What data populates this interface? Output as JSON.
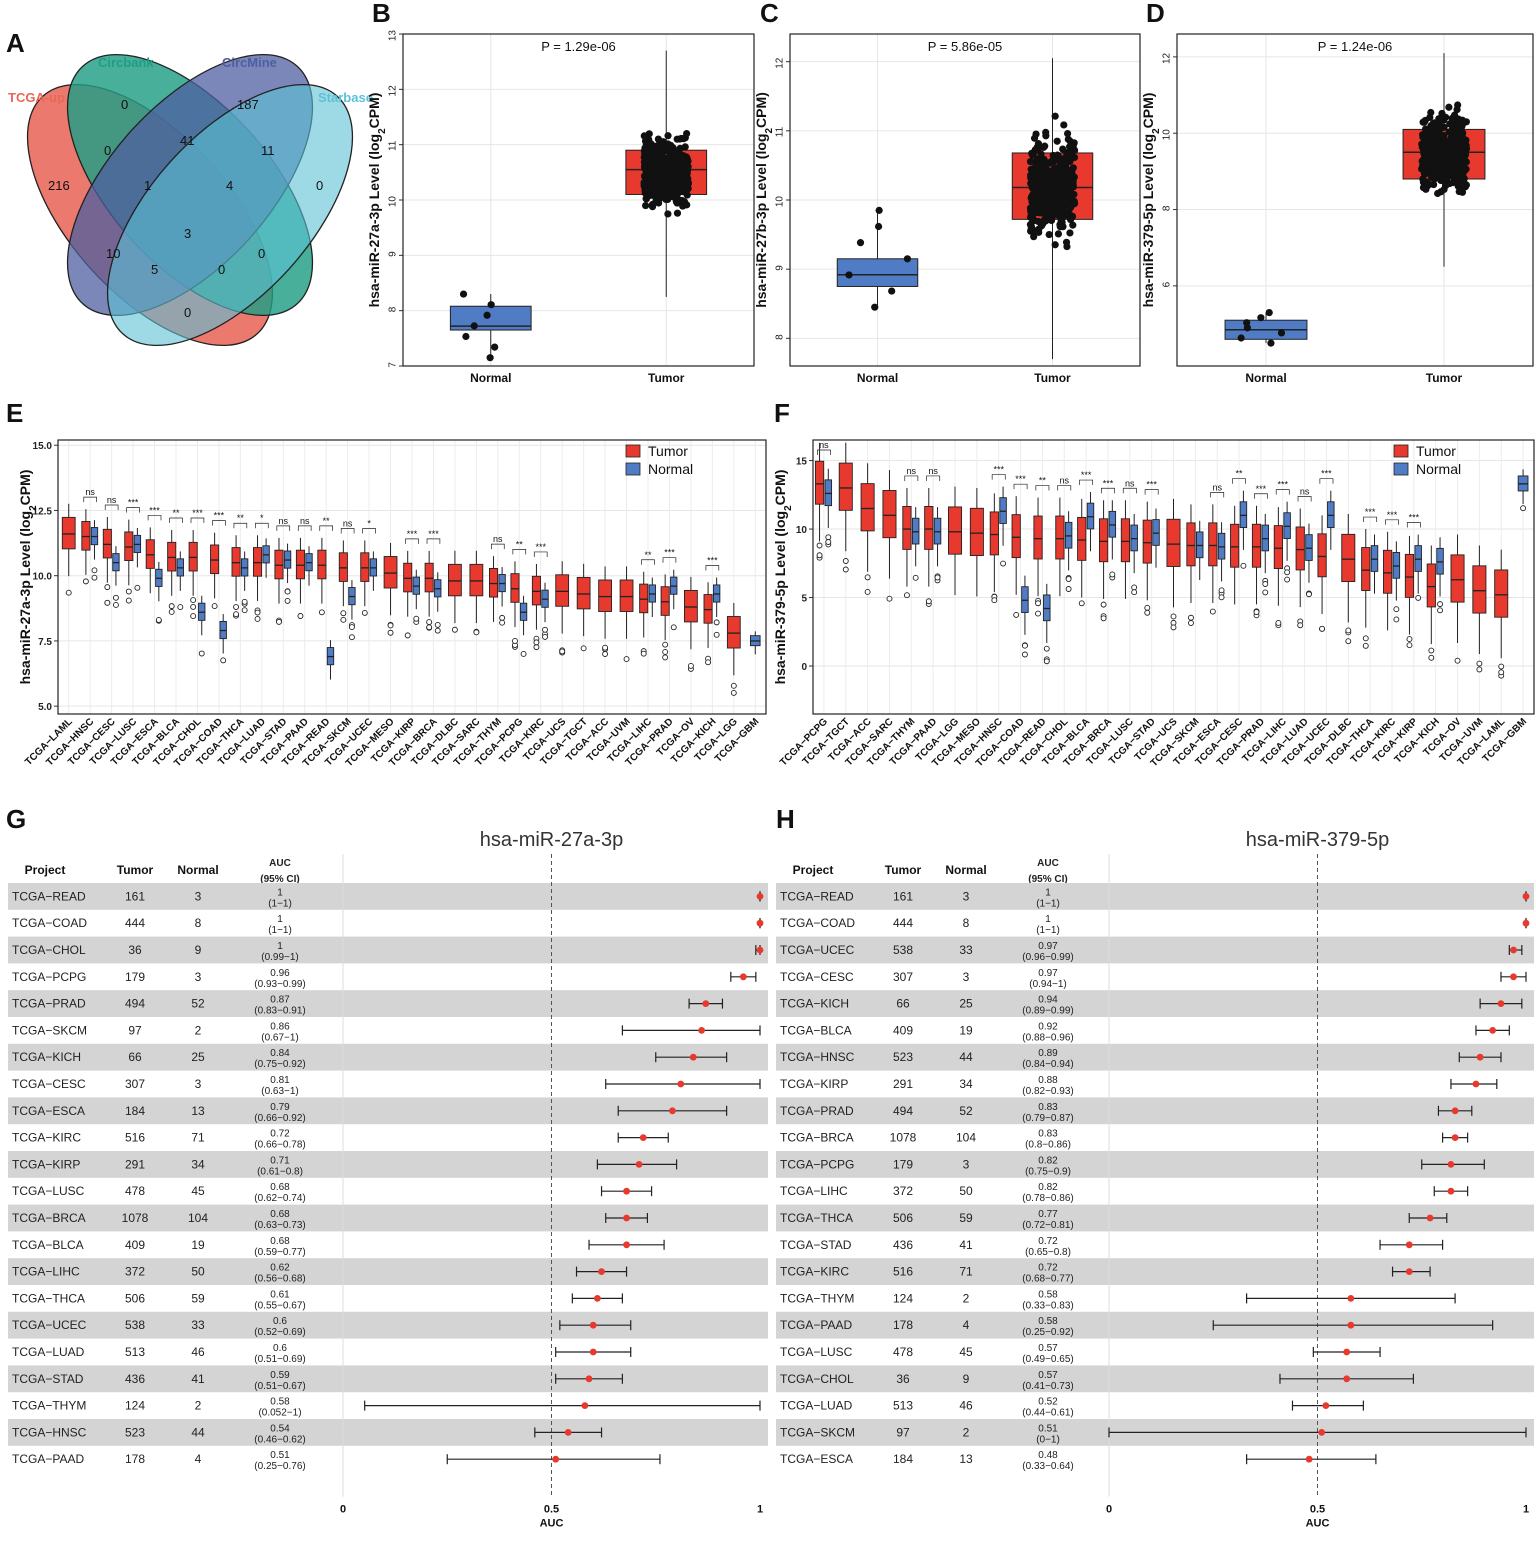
{
  "panels": {
    "A": "A",
    "B": "B",
    "C": "C",
    "D": "D",
    "E": "E",
    "F": "F",
    "G": "G",
    "H": "H"
  },
  "colors": {
    "tumor": "#e8392f",
    "normal": "#4f7cc5",
    "tcga": "#e8675a",
    "circbank": "#1f9e84",
    "circmine": "#4d5fa0",
    "starbase": "#5bc2d6",
    "grey": "#d4d4d4"
  },
  "venn": {
    "sets": [
      "TCGA-up",
      "Circbank",
      "CircMine",
      "Starbase"
    ],
    "counts": {
      "tcga_only": "216",
      "circbank_only": "0",
      "circmine_only": "187",
      "starbase_only": "0",
      "tc_cb": "0",
      "cb_cm": "41",
      "cm_sb": "11",
      "tc_cm": "10",
      "cb_sb": "0",
      "tc_sb": "0",
      "tc_cb_cm": "1",
      "cb_cm_sb": "4",
      "tc_cm_sb": "5",
      "tc_cb_sb": "0",
      "all": "3"
    }
  },
  "chart_data": [
    {
      "id": "B",
      "type": "box",
      "ylabel": "hsa-miR-27a-3p Level (log2CPM)",
      "pvalue": "P = 1.29e-06",
      "categories": [
        "Normal",
        "Tumor"
      ],
      "ylim": [
        7,
        13
      ],
      "yticks": [
        7,
        8,
        9,
        10,
        11,
        12,
        13
      ],
      "boxes": [
        {
          "group": "Normal",
          "q1": 7.65,
          "median": 7.72,
          "q3": 8.08,
          "min": 7.15,
          "max": 8.3
        },
        {
          "group": "Tumor",
          "q1": 10.1,
          "median": 10.55,
          "q3": 10.9,
          "min": 8.25,
          "max": 12.7
        }
      ]
    },
    {
      "id": "C",
      "type": "box",
      "ylabel": "hsa-miR-27b-3p Level (log2CPM)",
      "pvalue": "P = 5.86e-05",
      "categories": [
        "Normal",
        "Tumor"
      ],
      "ylim": [
        7.6,
        12.4
      ],
      "yticks": [
        8,
        9,
        10,
        11,
        12
      ],
      "boxes": [
        {
          "group": "Normal",
          "q1": 8.75,
          "median": 8.92,
          "q3": 9.15,
          "min": 8.45,
          "max": 9.85
        },
        {
          "group": "Tumor",
          "q1": 9.72,
          "median": 10.18,
          "q3": 10.68,
          "min": 7.7,
          "max": 12.05
        }
      ]
    },
    {
      "id": "D",
      "type": "box",
      "ylabel": "hsa-miR-379-5p Level (log2CPM)",
      "pvalue": "P = 1.24e-06",
      "categories": [
        "Normal",
        "Tumor"
      ],
      "ylim": [
        3.9,
        12.6
      ],
      "yticks": [
        6,
        8,
        10,
        12
      ],
      "boxes": [
        {
          "group": "Normal",
          "q1": 4.6,
          "median": 4.85,
          "q3": 5.1,
          "min": 4.5,
          "max": 5.3
        },
        {
          "group": "Tumor",
          "q1": 8.8,
          "median": 9.5,
          "q3": 10.1,
          "min": 6.5,
          "max": 12.1
        }
      ]
    },
    {
      "id": "E",
      "type": "grouped-box",
      "ylabel": "hsa-miR-27a-3p Level (log2CPM)",
      "ylim": [
        4.7,
        15.2
      ],
      "yticks": [
        5.0,
        7.5,
        10.0,
        12.5,
        15.0
      ],
      "legend": [
        "Tumor",
        "Normal"
      ],
      "categories": [
        "TCGA−LAML",
        "TCGA−HNSC",
        "TCGA−CESC",
        "TCGA−LUSC",
        "TCGA−ESCA",
        "TCGA−BLCA",
        "TCGA−CHOL",
        "TCGA−COAD",
        "TCGA−THCA",
        "TCGA−LUAD",
        "TCGA−STAD",
        "TCGA−PAAD",
        "TCGA−READ",
        "TCGA−SKCM",
        "TCGA−UCEC",
        "TCGA−MESO",
        "TCGA−KIRP",
        "TCGA−BRCA",
        "TCGA−DLBC",
        "TCGA−SARC",
        "TCGA−THYM",
        "TCGA−PCPG",
        "TCGA−KIRC",
        "TCGA−UCS",
        "TCGA−TGCT",
        "TCGA−ACC",
        "TCGA−UVM",
        "TCGA−LIHC",
        "TCGA−PRAD",
        "TCGA−OV",
        "TCGA−KICH",
        "TCGA−LGG",
        "TCGA−GBM"
      ],
      "tumor_median": [
        11.6,
        11.5,
        11.2,
        11.1,
        10.8,
        10.7,
        10.7,
        10.6,
        10.5,
        10.5,
        10.4,
        10.4,
        10.4,
        10.3,
        10.3,
        10.1,
        9.9,
        9.9,
        9.8,
        9.8,
        9.7,
        9.5,
        9.4,
        9.4,
        9.3,
        9.2,
        9.2,
        9.1,
        9.0,
        8.8,
        8.7,
        7.8,
        null
      ],
      "normal_median": [
        null,
        11.5,
        10.5,
        11.2,
        9.9,
        10.3,
        8.6,
        7.9,
        10.3,
        10.8,
        10.6,
        10.5,
        6.9,
        9.2,
        10.3,
        null,
        9.6,
        9.5,
        null,
        null,
        9.7,
        8.6,
        9.1,
        null,
        null,
        null,
        null,
        9.3,
        9.6,
        null,
        9.3,
        null,
        7.5
      ],
      "significance": [
        "",
        "ns",
        "ns",
        "***",
        "***",
        "**",
        "***",
        "***",
        "**",
        "*",
        "ns",
        "ns",
        "**",
        "ns",
        "*",
        "",
        "***",
        "***",
        "",
        "",
        "ns",
        "**",
        "***",
        "",
        "",
        "",
        "",
        "**",
        "***",
        "",
        "***",
        "",
        ""
      ]
    },
    {
      "id": "F",
      "type": "grouped-box",
      "ylabel": "hsa-miR-379-5p Level (log2CPM)",
      "ylim": [
        -3.5,
        16.5
      ],
      "yticks": [
        0,
        5,
        10,
        15
      ],
      "legend": [
        "Tumor",
        "Normal"
      ],
      "categories": [
        "TCGA−PCPG",
        "TCGA−TGCT",
        "TCGA−ACC",
        "TCGA−SARC",
        "TCGA−THYM",
        "TCGA−PAAD",
        "TCGA−LGG",
        "TCGA−MESO",
        "TCGA−HNSC",
        "TCGA−COAD",
        "TCGA−READ",
        "TCGA−CHOL",
        "TCGA−BLCA",
        "TCGA−BRCA",
        "TCGA−LUSC",
        "TCGA−STAD",
        "TCGA−UCS",
        "TCGA−SKCM",
        "TCGA−ESCA",
        "TCGA−CESC",
        "TCGA−PRAD",
        "TCGA−LIHC",
        "TCGA−LUAD",
        "TCGA−UCEC",
        "TCGA−DLBC",
        "TCGA−THCA",
        "TCGA−KIRC",
        "TCGA−KIRP",
        "TCGA−KICH",
        "TCGA−OV",
        "TCGA−UVM",
        "TCGA−LAML",
        "TCGA−GBM"
      ],
      "tumor_median": [
        13.3,
        13.0,
        11.5,
        11.0,
        10.0,
        10.0,
        9.8,
        9.7,
        9.6,
        9.4,
        9.3,
        9.3,
        9.2,
        9.1,
        9.1,
        9.0,
        8.9,
        8.8,
        8.8,
        8.7,
        8.7,
        8.6,
        8.5,
        8.0,
        7.8,
        7.0,
        6.8,
        6.5,
        5.8,
        6.3,
        5.5,
        5.2,
        null
      ],
      "normal_median": [
        12.6,
        null,
        null,
        null,
        9.8,
        9.8,
        null,
        null,
        11.3,
        4.8,
        4.2,
        9.5,
        10.9,
        10.3,
        9.3,
        9.7,
        null,
        8.8,
        8.7,
        11.0,
        9.3,
        10.2,
        8.6,
        11.0,
        null,
        7.8,
        7.3,
        7.8,
        7.6,
        null,
        null,
        null,
        13.3
      ],
      "significance": [
        "ns",
        "",
        "",
        "",
        "ns",
        "ns",
        "",
        "",
        "***",
        "***",
        "**",
        "ns",
        "***",
        "***",
        "ns",
        "***",
        "",
        "",
        "ns",
        "**",
        "***",
        "***",
        "ns",
        "***",
        "",
        "***",
        "***",
        "***",
        "",
        "",
        "",
        "",
        ""
      ]
    },
    {
      "id": "G",
      "type": "forest",
      "title": "hsa-miR-27a-3p",
      "xlabel": "AUC",
      "xlim": [
        0,
        1
      ],
      "xticks": [
        "0",
        "0.5",
        "1"
      ],
      "columns": {
        "project": "Project",
        "tumor": "Tumor",
        "normal": "Normal",
        "auc1": "AUC",
        "auc2": "(95% CI)"
      },
      "rows": [
        {
          "project": "TCGA−READ",
          "tumor": "161",
          "normal": "3",
          "auc": "1",
          "ci": "(1−1)",
          "a": 1,
          "lo": 1,
          "hi": 1
        },
        {
          "project": "TCGA−COAD",
          "tumor": "444",
          "normal": "8",
          "auc": "1",
          "ci": "(1−1)",
          "a": 1,
          "lo": 1,
          "hi": 1
        },
        {
          "project": "TCGA−CHOL",
          "tumor": "36",
          "normal": "9",
          "auc": "1",
          "ci": "(0.99−1)",
          "a": 1,
          "lo": 0.99,
          "hi": 1
        },
        {
          "project": "TCGA−PCPG",
          "tumor": "179",
          "normal": "3",
          "auc": "0.96",
          "ci": "(0.93−0.99)",
          "a": 0.96,
          "lo": 0.93,
          "hi": 0.99
        },
        {
          "project": "TCGA−PRAD",
          "tumor": "494",
          "normal": "52",
          "auc": "0.87",
          "ci": "(0.83−0.91)",
          "a": 0.87,
          "lo": 0.83,
          "hi": 0.91
        },
        {
          "project": "TCGA−SKCM",
          "tumor": "97",
          "normal": "2",
          "auc": "0.86",
          "ci": "(0.67−1)",
          "a": 0.86,
          "lo": 0.67,
          "hi": 1
        },
        {
          "project": "TCGA−KICH",
          "tumor": "66",
          "normal": "25",
          "auc": "0.84",
          "ci": "(0.75−0.92)",
          "a": 0.84,
          "lo": 0.75,
          "hi": 0.92
        },
        {
          "project": "TCGA−CESC",
          "tumor": "307",
          "normal": "3",
          "auc": "0.81",
          "ci": "(0.63−1)",
          "a": 0.81,
          "lo": 0.63,
          "hi": 1
        },
        {
          "project": "TCGA−ESCA",
          "tumor": "184",
          "normal": "13",
          "auc": "0.79",
          "ci": "(0.66−0.92)",
          "a": 0.79,
          "lo": 0.66,
          "hi": 0.92
        },
        {
          "project": "TCGA−KIRC",
          "tumor": "516",
          "normal": "71",
          "auc": "0.72",
          "ci": "(0.66−0.78)",
          "a": 0.72,
          "lo": 0.66,
          "hi": 0.78
        },
        {
          "project": "TCGA−KIRP",
          "tumor": "291",
          "normal": "34",
          "auc": "0.71",
          "ci": "(0.61−0.8)",
          "a": 0.71,
          "lo": 0.61,
          "hi": 0.8
        },
        {
          "project": "TCGA−LUSC",
          "tumor": "478",
          "normal": "45",
          "auc": "0.68",
          "ci": "(0.62−0.74)",
          "a": 0.68,
          "lo": 0.62,
          "hi": 0.74
        },
        {
          "project": "TCGA−BRCA",
          "tumor": "1078",
          "normal": "104",
          "auc": "0.68",
          "ci": "(0.63−0.73)",
          "a": 0.68,
          "lo": 0.63,
          "hi": 0.73
        },
        {
          "project": "TCGA−BLCA",
          "tumor": "409",
          "normal": "19",
          "auc": "0.68",
          "ci": "(0.59−0.77)",
          "a": 0.68,
          "lo": 0.59,
          "hi": 0.77
        },
        {
          "project": "TCGA−LIHC",
          "tumor": "372",
          "normal": "50",
          "auc": "0.62",
          "ci": "(0.56−0.68)",
          "a": 0.62,
          "lo": 0.56,
          "hi": 0.68
        },
        {
          "project": "TCGA−THCA",
          "tumor": "506",
          "normal": "59",
          "auc": "0.61",
          "ci": "(0.55−0.67)",
          "a": 0.61,
          "lo": 0.55,
          "hi": 0.67
        },
        {
          "project": "TCGA−UCEC",
          "tumor": "538",
          "normal": "33",
          "auc": "0.6",
          "ci": "(0.52−0.69)",
          "a": 0.6,
          "lo": 0.52,
          "hi": 0.69
        },
        {
          "project": "TCGA−LUAD",
          "tumor": "513",
          "normal": "46",
          "auc": "0.6",
          "ci": "(0.51−0.69)",
          "a": 0.6,
          "lo": 0.51,
          "hi": 0.69
        },
        {
          "project": "TCGA−STAD",
          "tumor": "436",
          "normal": "41",
          "auc": "0.59",
          "ci": "(0.51−0.67)",
          "a": 0.59,
          "lo": 0.51,
          "hi": 0.67
        },
        {
          "project": "TCGA−THYM",
          "tumor": "124",
          "normal": "2",
          "auc": "0.58",
          "ci": "(0.052−1)",
          "a": 0.58,
          "lo": 0.052,
          "hi": 1
        },
        {
          "project": "TCGA−HNSC",
          "tumor": "523",
          "normal": "44",
          "auc": "0.54",
          "ci": "(0.46−0.62)",
          "a": 0.54,
          "lo": 0.46,
          "hi": 0.62
        },
        {
          "project": "TCGA−PAAD",
          "tumor": "178",
          "normal": "4",
          "auc": "0.51",
          "ci": "(0.25−0.76)",
          "a": 0.51,
          "lo": 0.25,
          "hi": 0.76
        }
      ]
    },
    {
      "id": "H",
      "type": "forest",
      "title": "hsa-miR-379-5p",
      "xlabel": "AUC",
      "xlim": [
        0,
        1
      ],
      "xticks": [
        "0",
        "0.5",
        "1"
      ],
      "columns": {
        "project": "Project",
        "tumor": "Tumor",
        "normal": "Normal",
        "auc1": "AUC",
        "auc2": "(95% CI)"
      },
      "rows": [
        {
          "project": "TCGA−READ",
          "tumor": "161",
          "normal": "3",
          "auc": "1",
          "ci": "(1−1)",
          "a": 1,
          "lo": 1,
          "hi": 1
        },
        {
          "project": "TCGA−COAD",
          "tumor": "444",
          "normal": "8",
          "auc": "1",
          "ci": "(1−1)",
          "a": 1,
          "lo": 1,
          "hi": 1
        },
        {
          "project": "TCGA−UCEC",
          "tumor": "538",
          "normal": "33",
          "auc": "0.97",
          "ci": "(0.96−0.99)",
          "a": 0.97,
          "lo": 0.96,
          "hi": 0.99
        },
        {
          "project": "TCGA−CESC",
          "tumor": "307",
          "normal": "3",
          "auc": "0.97",
          "ci": "(0.94−1)",
          "a": 0.97,
          "lo": 0.94,
          "hi": 1
        },
        {
          "project": "TCGA−KICH",
          "tumor": "66",
          "normal": "25",
          "auc": "0.94",
          "ci": "(0.89−0.99)",
          "a": 0.94,
          "lo": 0.89,
          "hi": 0.99
        },
        {
          "project": "TCGA−BLCA",
          "tumor": "409",
          "normal": "19",
          "auc": "0.92",
          "ci": "(0.88−0.96)",
          "a": 0.92,
          "lo": 0.88,
          "hi": 0.96
        },
        {
          "project": "TCGA−HNSC",
          "tumor": "523",
          "normal": "44",
          "auc": "0.89",
          "ci": "(0.84−0.94)",
          "a": 0.89,
          "lo": 0.84,
          "hi": 0.94
        },
        {
          "project": "TCGA−KIRP",
          "tumor": "291",
          "normal": "34",
          "auc": "0.88",
          "ci": "(0.82−0.93)",
          "a": 0.88,
          "lo": 0.82,
          "hi": 0.93
        },
        {
          "project": "TCGA−PRAD",
          "tumor": "494",
          "normal": "52",
          "auc": "0.83",
          "ci": "(0.79−0.87)",
          "a": 0.83,
          "lo": 0.79,
          "hi": 0.87
        },
        {
          "project": "TCGA−BRCA",
          "tumor": "1078",
          "normal": "104",
          "auc": "0.83",
          "ci": "(0.8−0.86)",
          "a": 0.83,
          "lo": 0.8,
          "hi": 0.86
        },
        {
          "project": "TCGA−PCPG",
          "tumor": "179",
          "normal": "3",
          "auc": "0.82",
          "ci": "(0.75−0.9)",
          "a": 0.82,
          "lo": 0.75,
          "hi": 0.9
        },
        {
          "project": "TCGA−LIHC",
          "tumor": "372",
          "normal": "50",
          "auc": "0.82",
          "ci": "(0.78−0.86)",
          "a": 0.82,
          "lo": 0.78,
          "hi": 0.86
        },
        {
          "project": "TCGA−THCA",
          "tumor": "506",
          "normal": "59",
          "auc": "0.77",
          "ci": "(0.72−0.81)",
          "a": 0.77,
          "lo": 0.72,
          "hi": 0.81
        },
        {
          "project": "TCGA−STAD",
          "tumor": "436",
          "normal": "41",
          "auc": "0.72",
          "ci": "(0.65−0.8)",
          "a": 0.72,
          "lo": 0.65,
          "hi": 0.8
        },
        {
          "project": "TCGA−KIRC",
          "tumor": "516",
          "normal": "71",
          "auc": "0.72",
          "ci": "(0.68−0.77)",
          "a": 0.72,
          "lo": 0.68,
          "hi": 0.77
        },
        {
          "project": "TCGA−THYM",
          "tumor": "124",
          "normal": "2",
          "auc": "0.58",
          "ci": "(0.33−0.83)",
          "a": 0.58,
          "lo": 0.33,
          "hi": 0.83
        },
        {
          "project": "TCGA−PAAD",
          "tumor": "178",
          "normal": "4",
          "auc": "0.58",
          "ci": "(0.25−0.92)",
          "a": 0.58,
          "lo": 0.25,
          "hi": 0.92
        },
        {
          "project": "TCGA−LUSC",
          "tumor": "478",
          "normal": "45",
          "auc": "0.57",
          "ci": "(0.49−0.65)",
          "a": 0.57,
          "lo": 0.49,
          "hi": 0.65
        },
        {
          "project": "TCGA−CHOL",
          "tumor": "36",
          "normal": "9",
          "auc": "0.57",
          "ci": "(0.41−0.73)",
          "a": 0.57,
          "lo": 0.41,
          "hi": 0.73
        },
        {
          "project": "TCGA−LUAD",
          "tumor": "513",
          "normal": "46",
          "auc": "0.52",
          "ci": "(0.44−0.61)",
          "a": 0.52,
          "lo": 0.44,
          "hi": 0.61
        },
        {
          "project": "TCGA−SKCM",
          "tumor": "97",
          "normal": "2",
          "auc": "0.51",
          "ci": "(0−1)",
          "a": 0.51,
          "lo": 0,
          "hi": 1
        },
        {
          "project": "TCGA−ESCA",
          "tumor": "184",
          "normal": "13",
          "auc": "0.48",
          "ci": "(0.33−0.64)",
          "a": 0.48,
          "lo": 0.33,
          "hi": 0.64
        }
      ]
    }
  ]
}
